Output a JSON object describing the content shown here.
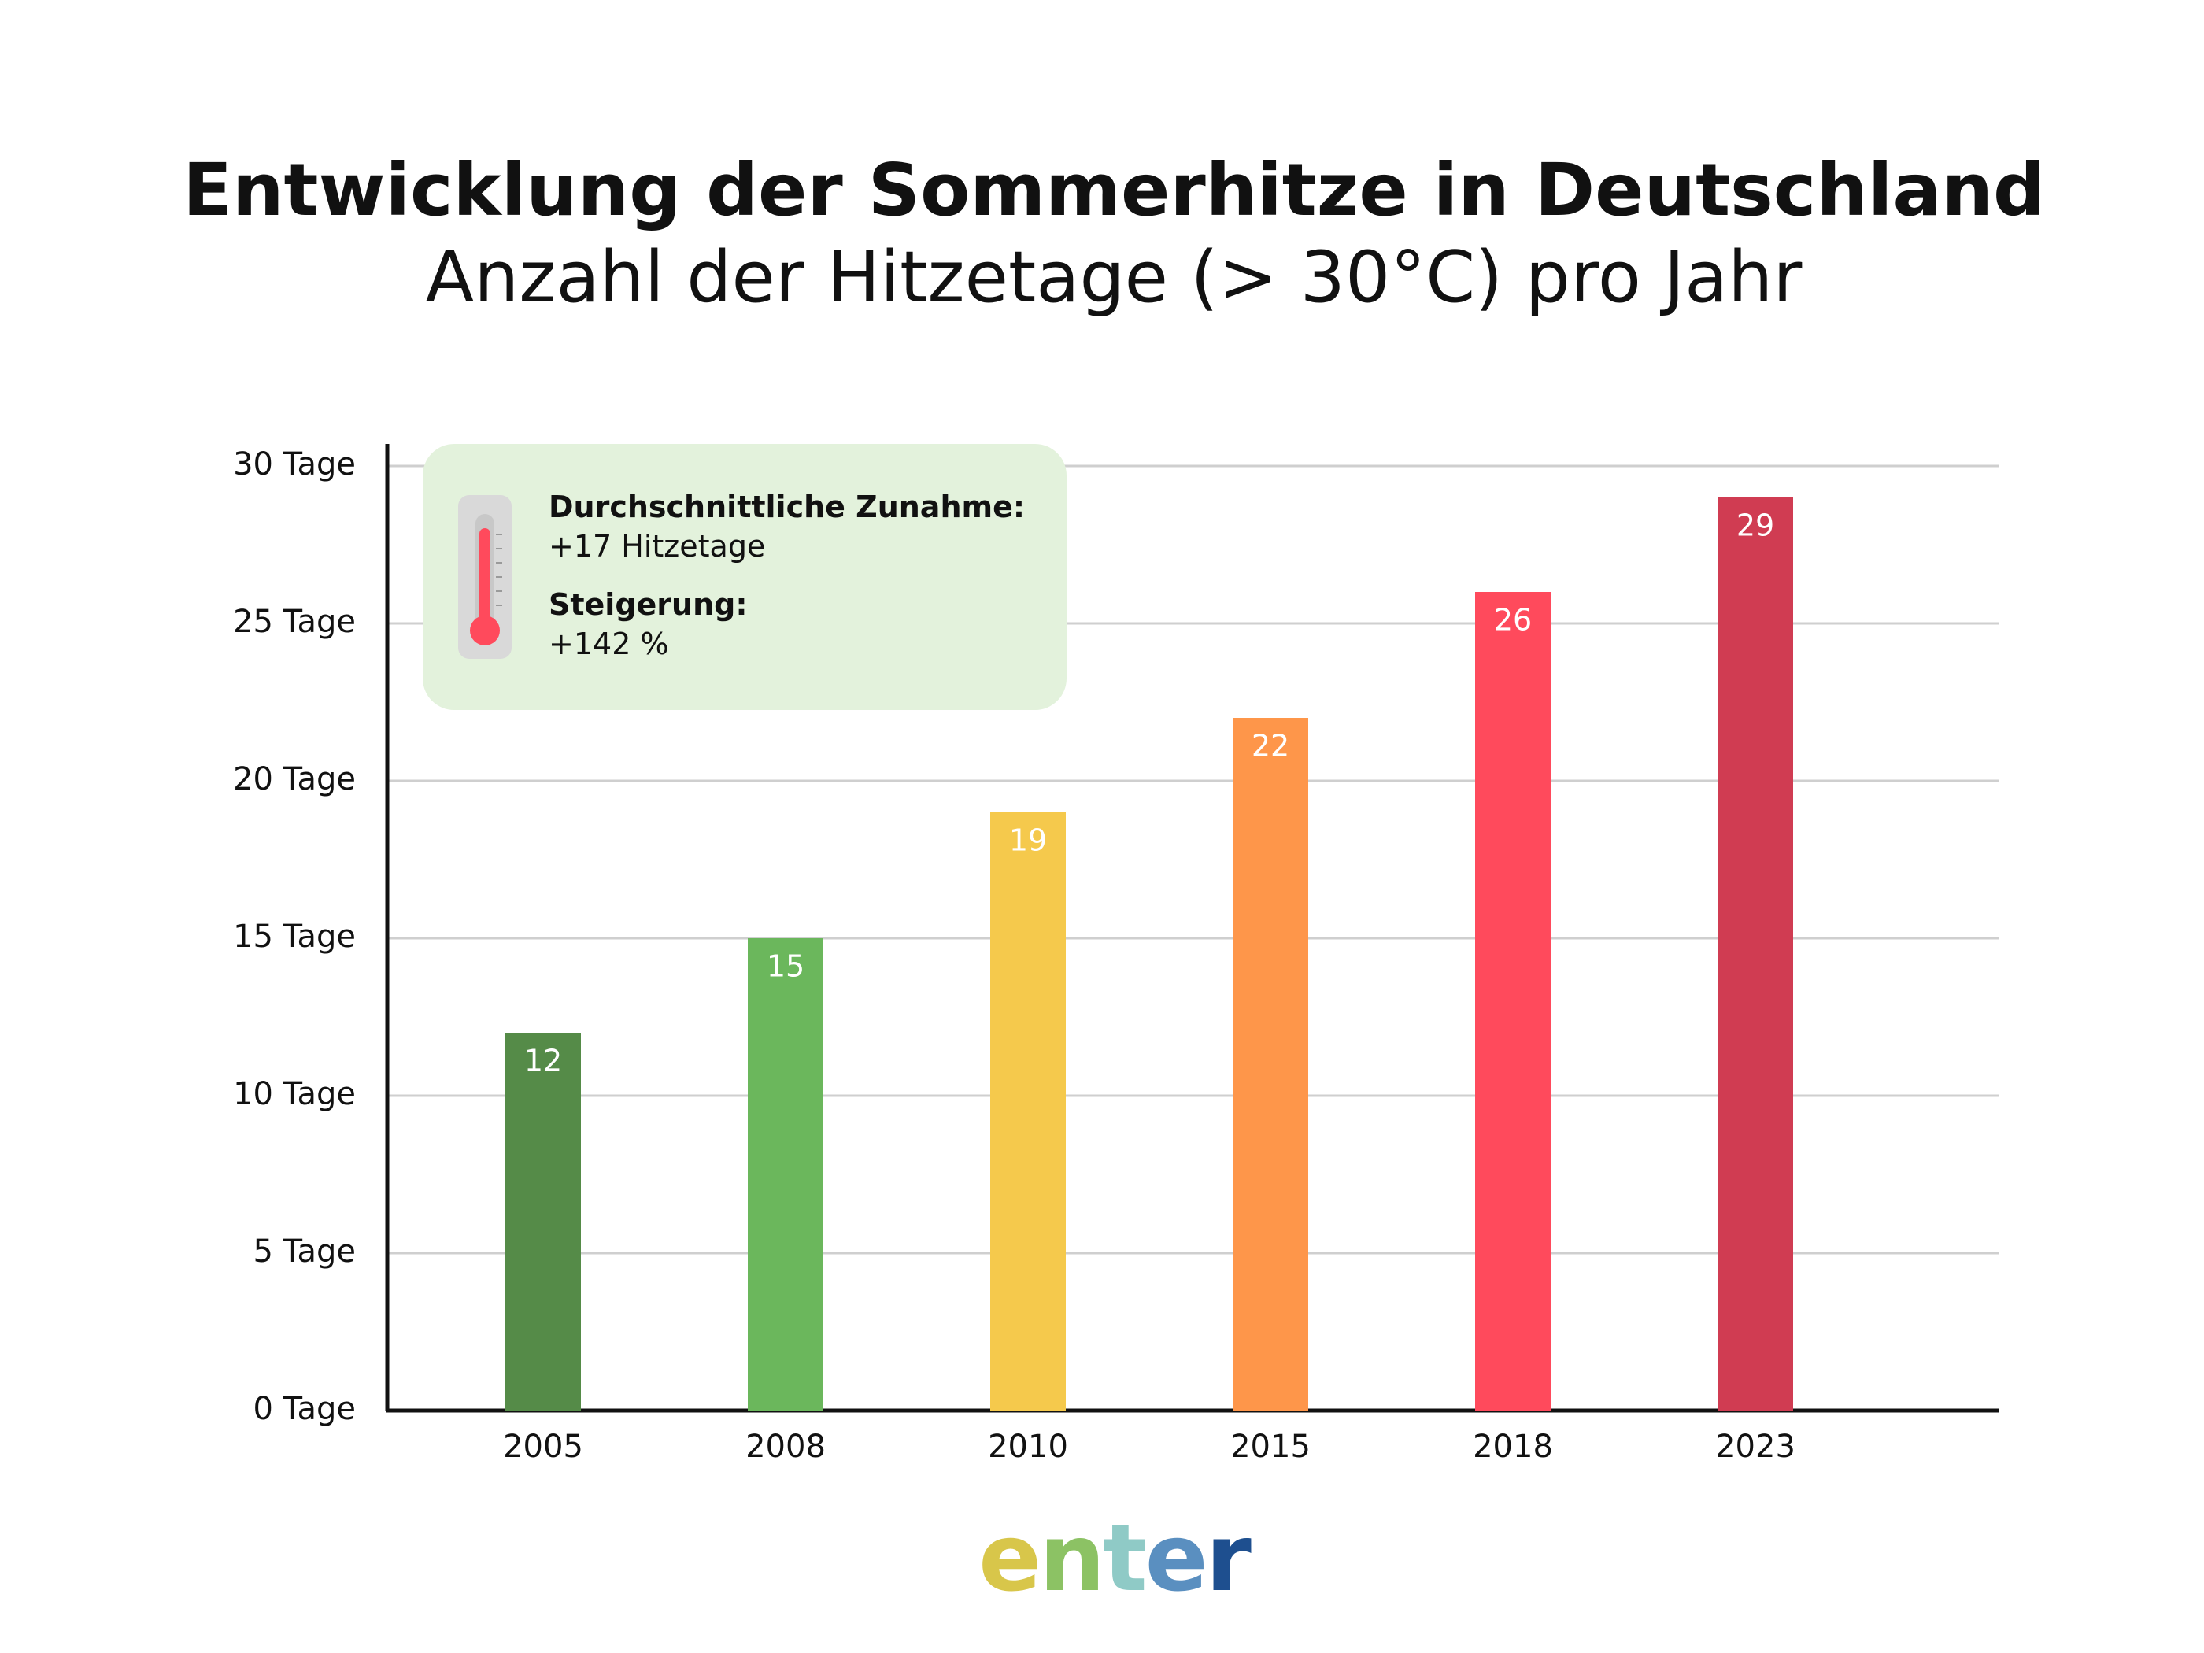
{
  "header": {
    "title": "Entwicklung der Sommerhitze in Deutschland",
    "subtitle": "Anzahl der Hitzetage (> 30°C) pro Jahr"
  },
  "info_box": {
    "increase_label": "Durchschnittliche Zunahme:",
    "increase_value": "+17 Hitzetage",
    "growth_label": "Steigerung:",
    "growth_value": "+142 %",
    "icon": "thermometer-icon"
  },
  "logo": {
    "text": "enter",
    "letters": [
      "e",
      "n",
      "t",
      "e",
      "r"
    ]
  },
  "chart_data": {
    "type": "bar",
    "title": "",
    "xlabel": "",
    "ylabel": "",
    "categories": [
      "2005",
      "2008",
      "2010",
      "2015",
      "2018",
      "2023"
    ],
    "values": [
      12,
      15,
      19,
      22,
      26,
      29
    ],
    "colors": [
      "#558b48",
      "#6bb75c",
      "#f5c94c",
      "#fe964a",
      "#ff4a5c",
      "#d03c52"
    ],
    "ylim": [
      0,
      30
    ],
    "yticks": [
      0,
      5,
      10,
      15,
      20,
      25,
      30
    ],
    "ytick_labels": [
      "0 Tage",
      "5 Tage",
      "10 Tage",
      "15 Tage",
      "20 Tage",
      "25 Tage",
      "30 Tage"
    ],
    "grid": true,
    "value_label_color": "#ffffff"
  }
}
